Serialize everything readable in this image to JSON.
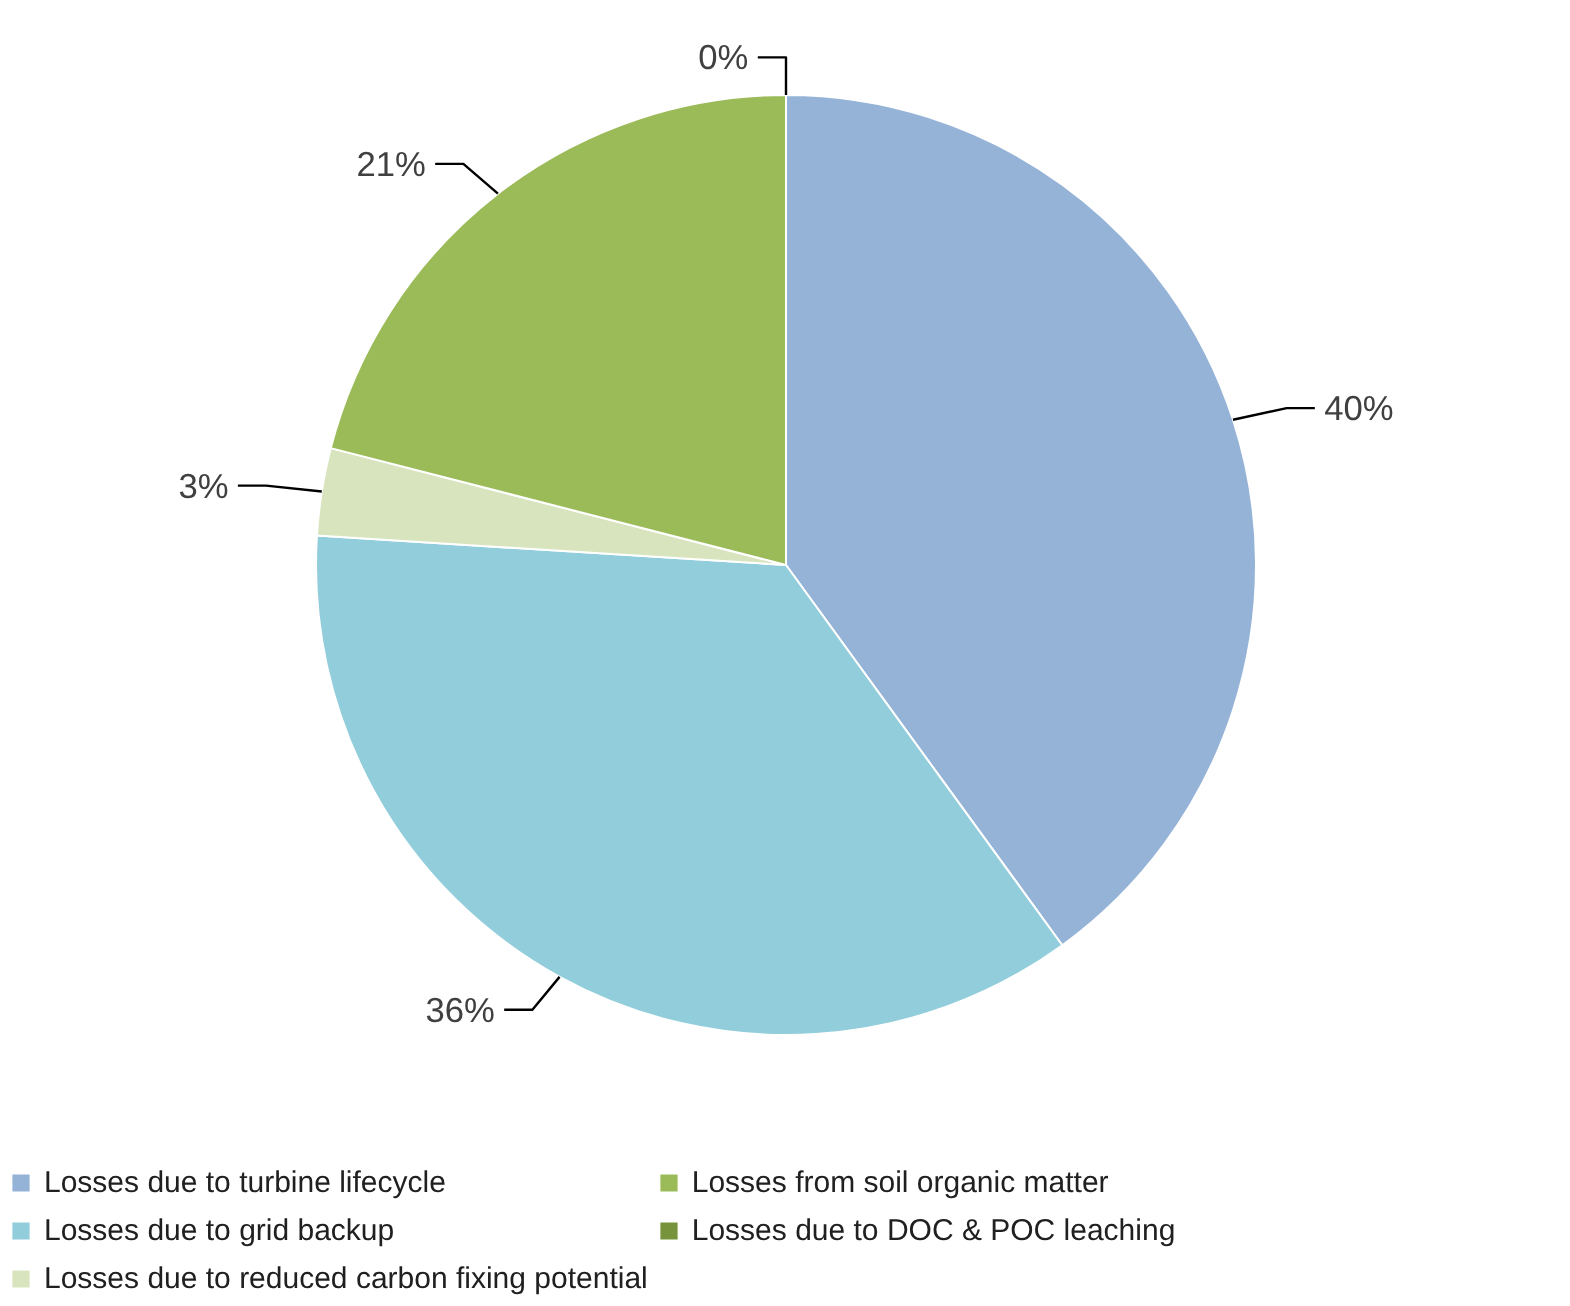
{
  "chart_data": {
    "type": "pie",
    "categories": [
      "Losses due to turbine lifecycle",
      "Losses due to grid backup",
      "Losses due to reduced carbon fixing potential",
      "Losses from soil organic matter",
      "Losses due to DOC & POC leaching"
    ],
    "values": [
      40,
      36,
      3,
      21,
      0
    ],
    "value_labels": [
      "40%",
      "36%",
      "3%",
      "21%",
      "0%"
    ],
    "colors": [
      "#95b3d7",
      "#92cddc",
      "#d7e4bd",
      "#9bbb59",
      "#77933c"
    ],
    "legend": "bottom"
  }
}
